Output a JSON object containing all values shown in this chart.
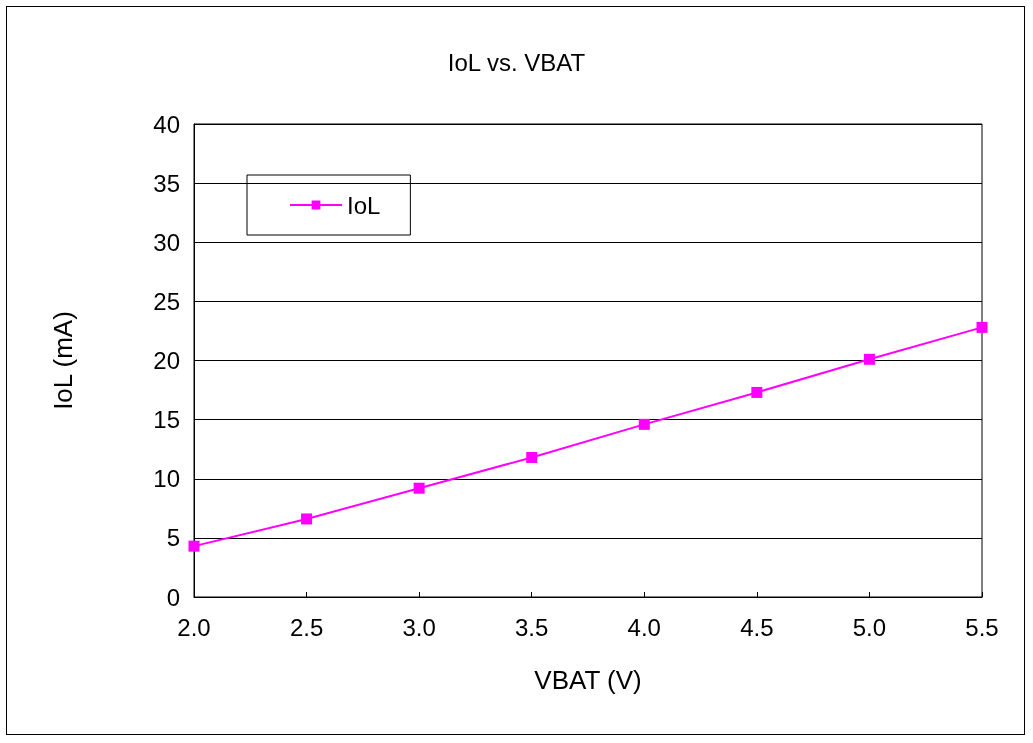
{
  "chart_data": {
    "type": "line",
    "title": "IoL vs. VBAT",
    "xlabel": "VBAT (V)",
    "ylabel": "IoL (mA)",
    "x": [
      2.0,
      2.5,
      3.0,
      3.5,
      4.0,
      4.5,
      5.0,
      5.5
    ],
    "series": [
      {
        "name": "IoL",
        "color": "#ff00ff",
        "values": [
          4.3,
          6.6,
          9.2,
          11.8,
          14.6,
          17.3,
          20.1,
          22.8
        ]
      }
    ],
    "xlim": [
      2.0,
      5.5
    ],
    "xticks": [
      {
        "value": 2,
        "label": "2.0"
      },
      {
        "value": 2.5,
        "label": "2.5"
      },
      {
        "value": 3,
        "label": "3.0"
      },
      {
        "value": 3.5,
        "label": "3.5"
      },
      {
        "value": 4,
        "label": "4.0"
      },
      {
        "value": 4.5,
        "label": "4.5"
      },
      {
        "value": 5,
        "label": "5.0"
      },
      {
        "value": 5.5,
        "label": "5.5"
      }
    ],
    "ylim": [
      0,
      40
    ],
    "yticks": [
      0,
      5,
      10,
      15,
      20,
      25,
      30,
      35,
      40
    ],
    "grid": "y",
    "legend": "top left",
    "marker": "square",
    "line_style": "solid"
  }
}
